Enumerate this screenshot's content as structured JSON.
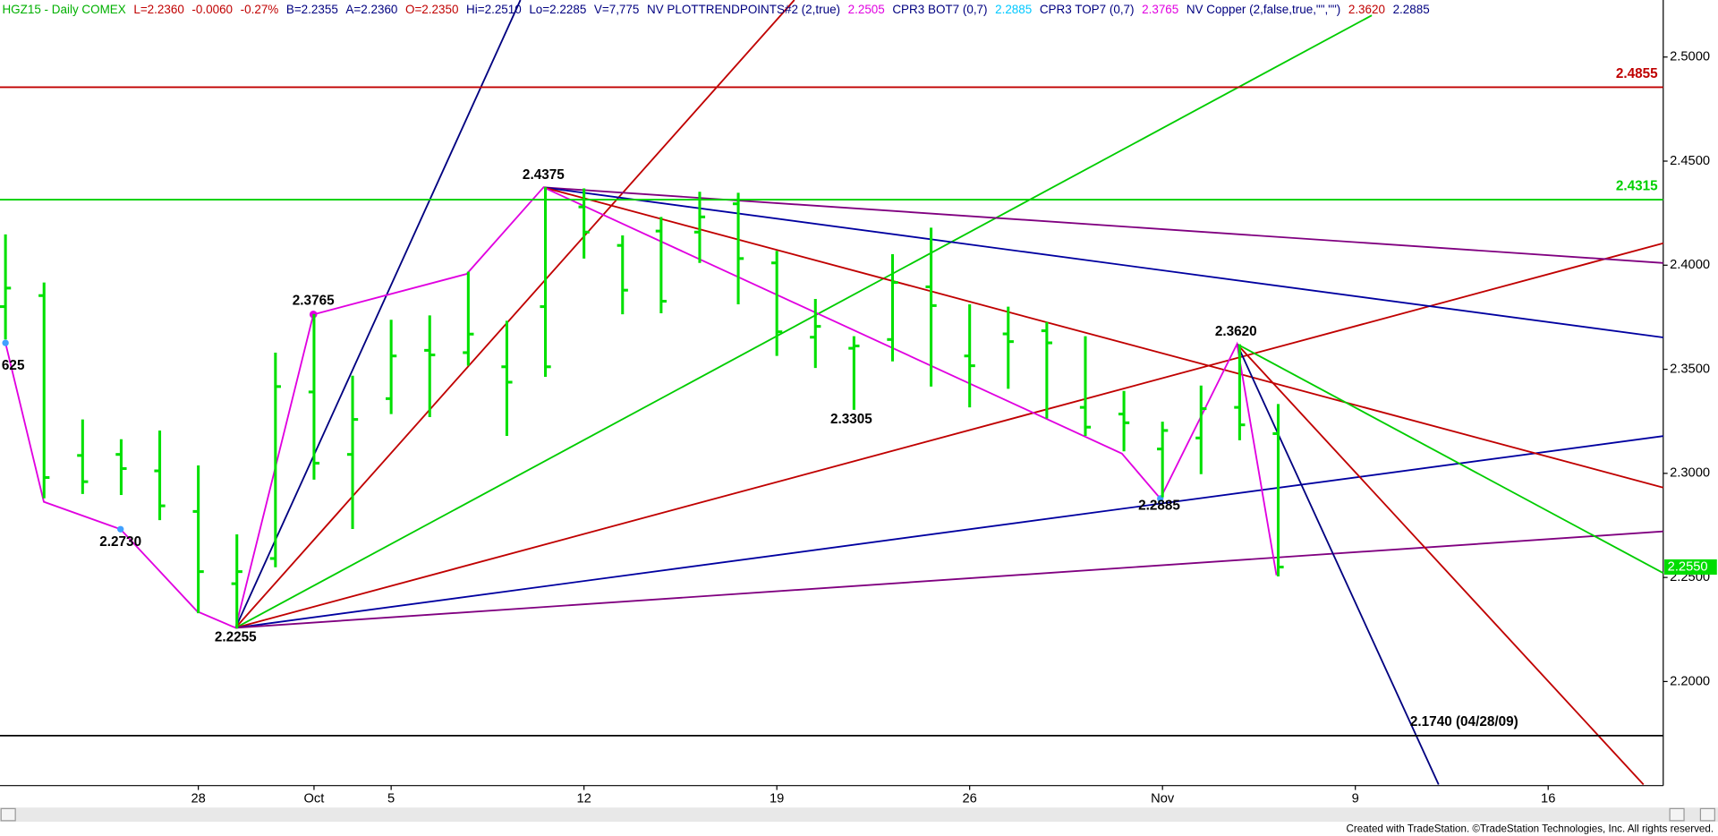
{
  "chart_data": {
    "type": "ohlc",
    "header": [
      {
        "text": "HGZ15 - Daily  COMEX",
        "color": "#00b000"
      },
      {
        "text": "L=2.2360",
        "color": "#c00000"
      },
      {
        "text": "-0.0060",
        "color": "#c00000"
      },
      {
        "text": "-0.27%",
        "color": "#c00000"
      },
      {
        "text": "B=2.2355",
        "color": "#000080"
      },
      {
        "text": "A=2.2360",
        "color": "#000080"
      },
      {
        "text": "O=2.2350",
        "color": "#c00000"
      },
      {
        "text": "Hi=2.2510",
        "color": "#000080"
      },
      {
        "text": "Lo=2.2285",
        "color": "#000080"
      },
      {
        "text": "V=7,775",
        "color": "#000080"
      },
      {
        "text": "NV  PLOTTRENDPOINTS#2 (2,true)",
        "color": "#000080"
      },
      {
        "text": "2.2505",
        "color": "#e000e0"
      },
      {
        "text": "CPR3 BOT7 (0,7)",
        "color": "#000080"
      },
      {
        "text": "2.2885",
        "color": "#00c8ff"
      },
      {
        "text": "CPR3 TOP7 (0,7)",
        "color": "#000080"
      },
      {
        "text": "2.3765",
        "color": "#e000e0"
      },
      {
        "text": "NV Copper (2,false,true,\"\",\"\")",
        "color": "#000080"
      },
      {
        "text": "2.3620",
        "color": "#c00000"
      },
      {
        "text": "2.2885",
        "color": "#000080"
      }
    ],
    "categories": [
      null,
      null,
      null,
      null,
      null,
      "28",
      null,
      null,
      "Oct",
      null,
      "5",
      null,
      null,
      null,
      null,
      "12",
      null,
      null,
      null,
      null,
      "19",
      null,
      null,
      null,
      null,
      "26",
      null,
      null,
      null,
      null,
      "Nov",
      null,
      null,
      null,
      null,
      "9",
      null,
      null,
      null,
      null,
      "16",
      null,
      null,
      null
    ],
    "color": "#00e000",
    "open": [
      2.3801,
      2.3854,
      2.3086,
      2.3091,
      2.3012,
      2.2817,
      2.247,
      2.2591,
      2.3391,
      2.3091,
      2.3359,
      2.3591,
      2.358,
      2.3512,
      2.3801,
      2.428,
      2.4095,
      2.4164,
      2.4159,
      2.4295,
      2.4011,
      2.3654,
      2.3601,
      2.3643,
      2.3896,
      2.3564,
      2.367,
      2.3685,
      2.3317,
      2.3285,
      2.3117,
      2.317,
      2.3317,
      2.3191,
      null,
      null,
      null,
      null,
      null,
      null,
      null,
      null,
      null,
      null
    ],
    "high": [
      2.4148,
      2.3917,
      2.3259,
      2.3164,
      2.3206,
      2.3038,
      2.2707,
      2.358,
      2.3765,
      2.3469,
      2.3738,
      2.3759,
      2.3969,
      2.3733,
      2.4375,
      2.4369,
      2.4143,
      2.4232,
      2.4353,
      2.4348,
      2.4069,
      2.3838,
      2.3659,
      2.4053,
      2.418,
      2.3812,
      2.3801,
      2.3727,
      2.3659,
      2.3396,
      2.3248,
      2.3422,
      2.362,
      2.3333,
      null,
      null,
      null,
      null,
      null,
      null,
      null,
      null,
      null,
      null
    ],
    "low": [
      2.3643,
      2.288,
      2.2901,
      2.2896,
      2.2775,
      2.2328,
      2.2255,
      2.2549,
      2.297,
      2.2733,
      2.3285,
      2.327,
      2.3517,
      2.318,
      2.3464,
      2.4032,
      2.3764,
      2.3769,
      2.4011,
      2.3812,
      2.3564,
      2.3506,
      2.3305,
      2.3538,
      2.3417,
      2.3317,
      2.3406,
      2.3264,
      2.318,
      2.3106,
      2.2885,
      2.2996,
      2.3159,
      2.2505,
      null,
      null,
      null,
      null,
      null,
      null,
      null,
      null,
      null,
      null
    ],
    "close": [
      2.389,
      2.298,
      2.296,
      2.3023,
      2.2844,
      2.2528,
      2.2528,
      2.3417,
      2.3049,
      2.3259,
      2.3564,
      2.3569,
      2.3669,
      2.3438,
      2.3512,
      2.4159,
      2.388,
      2.3827,
      2.4232,
      2.4032,
      2.368,
      2.3706,
      2.3612,
      2.3917,
      2.3806,
      2.3517,
      2.3633,
      2.3627,
      2.3222,
      2.3243,
      2.3206,
      2.3311,
      2.3233,
      2.255,
      null,
      null,
      null,
      null,
      null,
      null,
      null,
      null,
      null,
      null
    ],
    "ylim": [
      2.15,
      2.5274
    ],
    "yticks": [
      {
        "value": 2.2,
        "label": "2.2000"
      },
      {
        "value": 2.25,
        "label": "2.2500"
      },
      {
        "value": 2.3,
        "label": "2.3000"
      },
      {
        "value": 2.35,
        "label": "2.3500"
      },
      {
        "value": 2.4,
        "label": "2.4000"
      },
      {
        "value": 2.45,
        "label": "2.4500"
      },
      {
        "value": 2.5,
        "label": "2.5000"
      }
    ],
    "levels": [
      {
        "value": 2.4855,
        "label": "2.4855",
        "color": "#c00000"
      },
      {
        "value": 2.4315,
        "label": "2.4315",
        "color": "#00d000"
      },
      {
        "value": 2.174,
        "label": "2.1740 (04/28/09)",
        "color": "#000000"
      }
    ],
    "last_price": {
      "value": 2.255,
      "label": "2.2550",
      "color": "#00dd00"
    },
    "annotations": [
      "2.4375",
      "2.3765",
      "2.3620",
      "2.3305",
      "2.2885",
      "2.2730",
      "2.2255",
      "625"
    ],
    "footer": "Created with TradeStation. ©TradeStation Technologies, Inc. All rights reserved."
  }
}
